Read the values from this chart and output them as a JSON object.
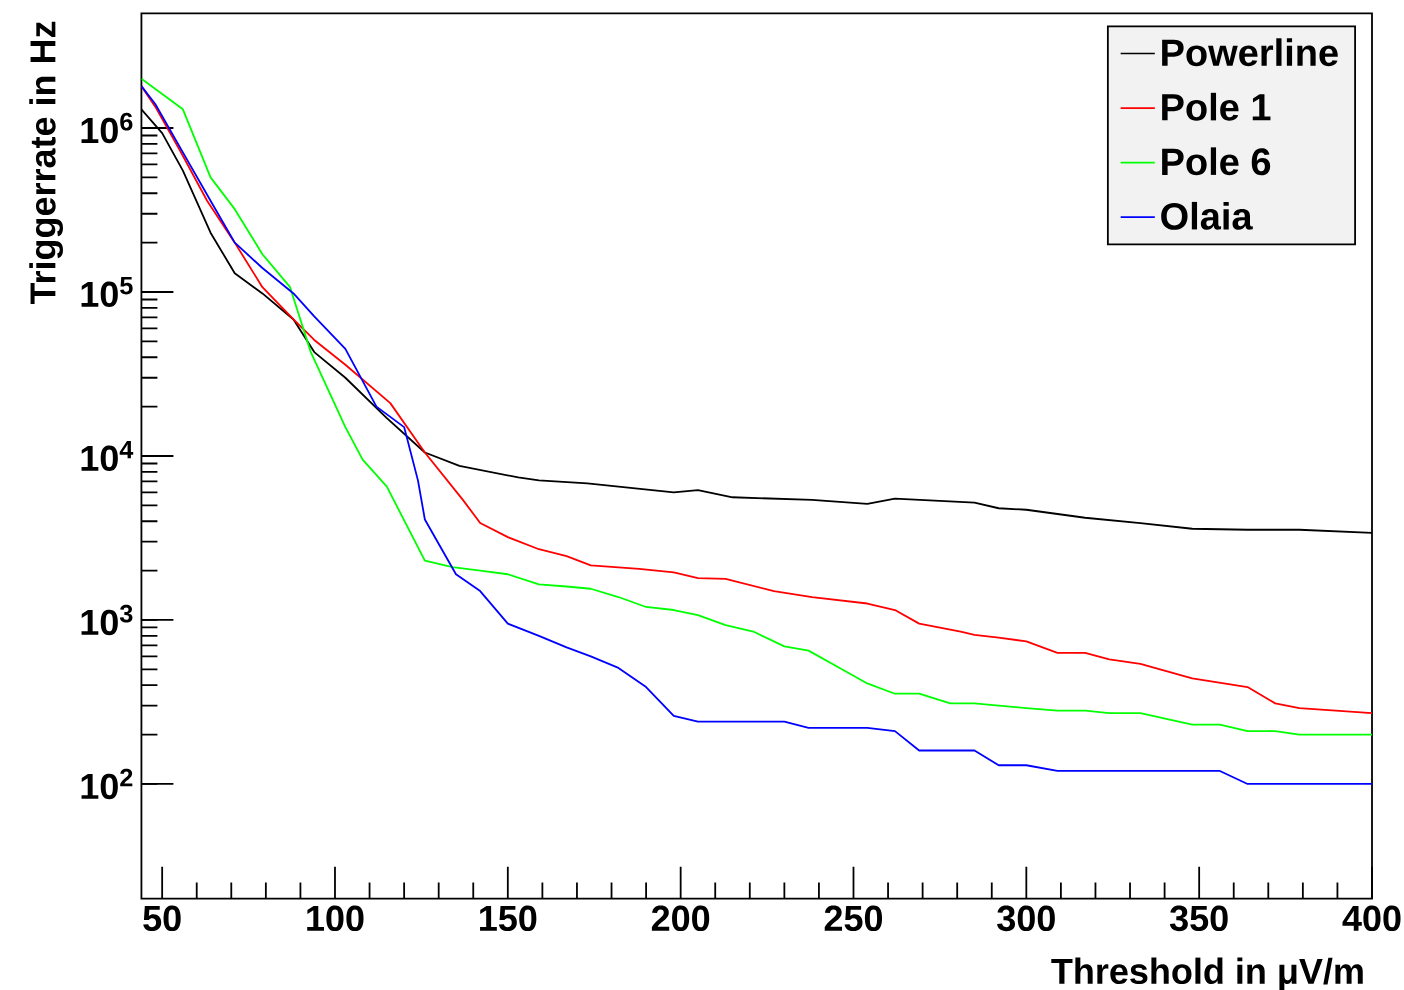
{
  "chart_data": {
    "type": "line",
    "xlabel": "Threshold in μV/m",
    "ylabel": "Triggerrate in Hz",
    "log": "y",
    "xlim": [
      44,
      400
    ],
    "ylim": [
      20,
      5000000
    ],
    "xticks": [
      50,
      100,
      150,
      200,
      250,
      300,
      350,
      400
    ],
    "yticks": [
      {
        "value": 100,
        "label": "10$^{2}$"
      },
      {
        "value": 1000,
        "label": "10$^{3}$"
      },
      {
        "value": 10000,
        "label": "10$^{4}$"
      },
      {
        "value": 100000,
        "label": "10$^{5}$"
      },
      {
        "value": 1000000,
        "label": "10$^{6}$"
      }
    ],
    "grid": false,
    "legend": "top right",
    "marker": "none",
    "line_style": "solid",
    "series": [
      {
        "name": "Powerline",
        "color": "#000000",
        "x": [
          44,
          50,
          56,
          64,
          71,
          79,
          88,
          94,
          103,
          115,
          126,
          136,
          153,
          159,
          173,
          198,
          205,
          215,
          238,
          254,
          262,
          285,
          292,
          300,
          317,
          333,
          348,
          364,
          379,
          400
        ],
        "values": [
          1300000,
          930000,
          550000,
          230000,
          130000,
          98000,
          68000,
          43000,
          30000,
          17000,
          10500,
          8700,
          7400,
          7100,
          6800,
          6000,
          6200,
          5600,
          5400,
          5100,
          5500,
          5200,
          4800,
          4700,
          4200,
          3900,
          3600,
          3550,
          3550,
          3400
        ]
      },
      {
        "name": "Pole 1",
        "color": "#ff0000",
        "x": [
          44,
          48,
          55,
          63,
          71,
          79,
          88,
          94,
          103,
          116,
          126,
          137,
          142,
          150,
          159,
          167,
          174,
          188,
          198,
          205,
          213,
          227,
          238,
          254,
          262,
          269,
          281,
          285,
          292,
          300,
          309,
          317,
          324,
          333,
          348,
          364,
          372,
          379,
          400
        ],
        "values": [
          1800000,
          1350000,
          740000,
          360000,
          200000,
          107000,
          68000,
          51000,
          36000,
          21000,
          10500,
          5400,
          3900,
          3200,
          2700,
          2450,
          2150,
          2050,
          1950,
          1800,
          1780,
          1500,
          1380,
          1260,
          1150,
          950,
          850,
          810,
          780,
          740,
          630,
          630,
          575,
          540,
          440,
          390,
          310,
          290,
          270
        ]
      },
      {
        "name": "Pole 6",
        "color": "#00ff00",
        "x": [
          44,
          56,
          64,
          71,
          79,
          87,
          93,
          103,
          108,
          115,
          126,
          134,
          142,
          150,
          159,
          167,
          174,
          182,
          190,
          198,
          205,
          213,
          221,
          230,
          237,
          246,
          254,
          262,
          269,
          278,
          285,
          300,
          309,
          317,
          324,
          333,
          348,
          356,
          364,
          372,
          379,
          400
        ],
        "values": [
          2000000,
          1300000,
          500000,
          320000,
          170000,
          107000,
          43000,
          15000,
          9500,
          6500,
          2300,
          2100,
          2000,
          1900,
          1650,
          1600,
          1550,
          1380,
          1200,
          1150,
          1070,
          930,
          850,
          690,
          650,
          510,
          410,
          355,
          355,
          310,
          310,
          290,
          280,
          280,
          270,
          270,
          230,
          230,
          210,
          210,
          200,
          200
        ]
      },
      {
        "name": "Olaia",
        "color": "#0000ff",
        "x": [
          44,
          48,
          56,
          64,
          71,
          79,
          88,
          94,
          103,
          112,
          120,
          124,
          126,
          135,
          142,
          150,
          159,
          167,
          174,
          182,
          190,
          198,
          205,
          230,
          237,
          254,
          262,
          269,
          285,
          292,
          300,
          309,
          356,
          364,
          400
        ],
        "values": [
          1800000,
          1400000,
          710000,
          360000,
          200000,
          140000,
          98000,
          71000,
          45000,
          20000,
          15000,
          7100,
          4100,
          1900,
          1500,
          950,
          800,
          680,
          600,
          510,
          390,
          260,
          240,
          240,
          220,
          220,
          210,
          160,
          160,
          130,
          130,
          120,
          120,
          100,
          100
        ]
      }
    ]
  }
}
